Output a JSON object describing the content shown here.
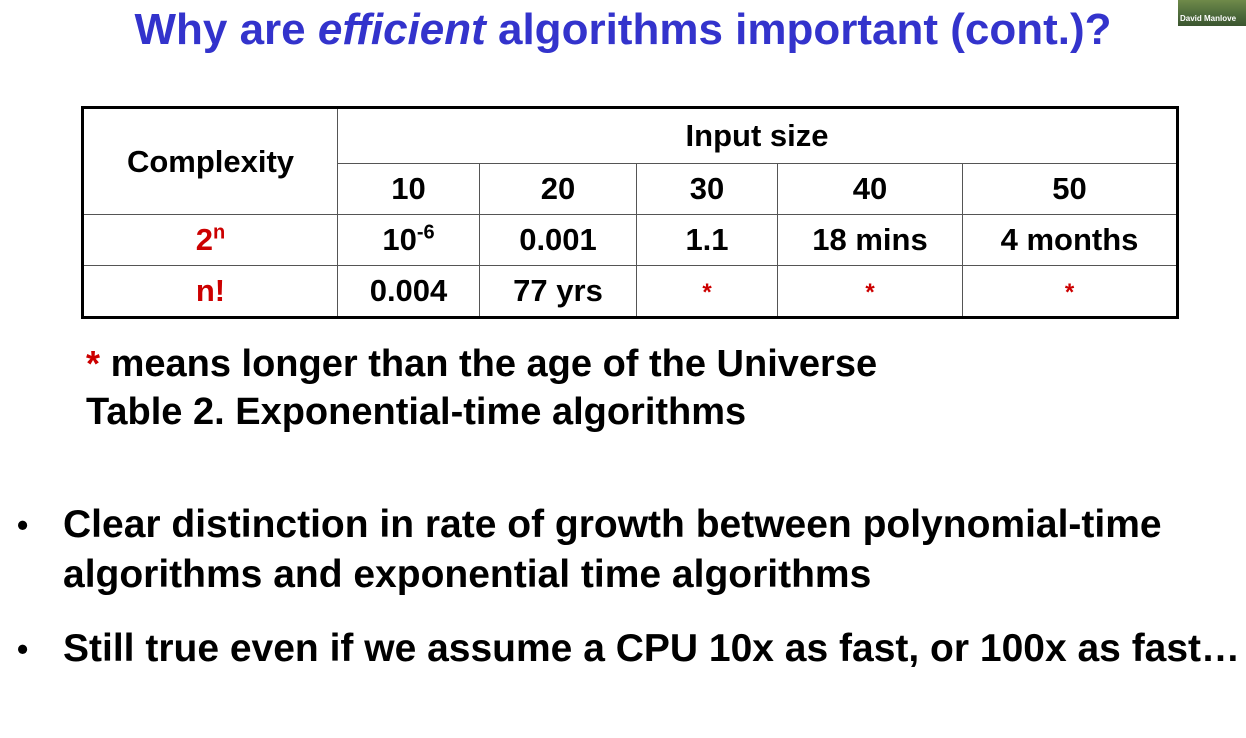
{
  "title": {
    "part1": "Why are ",
    "emphasis": "efficient",
    "part2": " algorithms important (cont.)?"
  },
  "webcam": {
    "name": "David Manlove"
  },
  "table": {
    "complexity_header": "Complexity",
    "input_size_header": "Input size",
    "input_sizes": [
      "10",
      "20",
      "30",
      "40",
      "50"
    ],
    "rows": [
      {
        "label_base": "2",
        "label_sup": "n",
        "cells": [
          {
            "base": "10",
            "sup": "-6"
          },
          {
            "text": "0.001"
          },
          {
            "text": "1.1"
          },
          {
            "text": "18 mins"
          },
          {
            "text": "4 months"
          }
        ]
      },
      {
        "label": "n!",
        "cells": [
          {
            "text": "0.004"
          },
          {
            "text": "77 yrs"
          },
          {
            "text": "*"
          },
          {
            "text": "*"
          },
          {
            "text": "*"
          }
        ]
      }
    ]
  },
  "note": {
    "star": "*",
    "text": " means longer than the age of the Universe",
    "caption": "Table 2.  Exponential-time algorithms"
  },
  "bullets": [
    "Clear distinction in rate of growth between polynomial-time algorithms and exponential time algorithms",
    "Still true even if we assume a CPU 10x as fast, or 100x as fast…"
  ],
  "colors": {
    "title": "#3333cc",
    "highlight": "#cc0000",
    "text": "#000000"
  }
}
